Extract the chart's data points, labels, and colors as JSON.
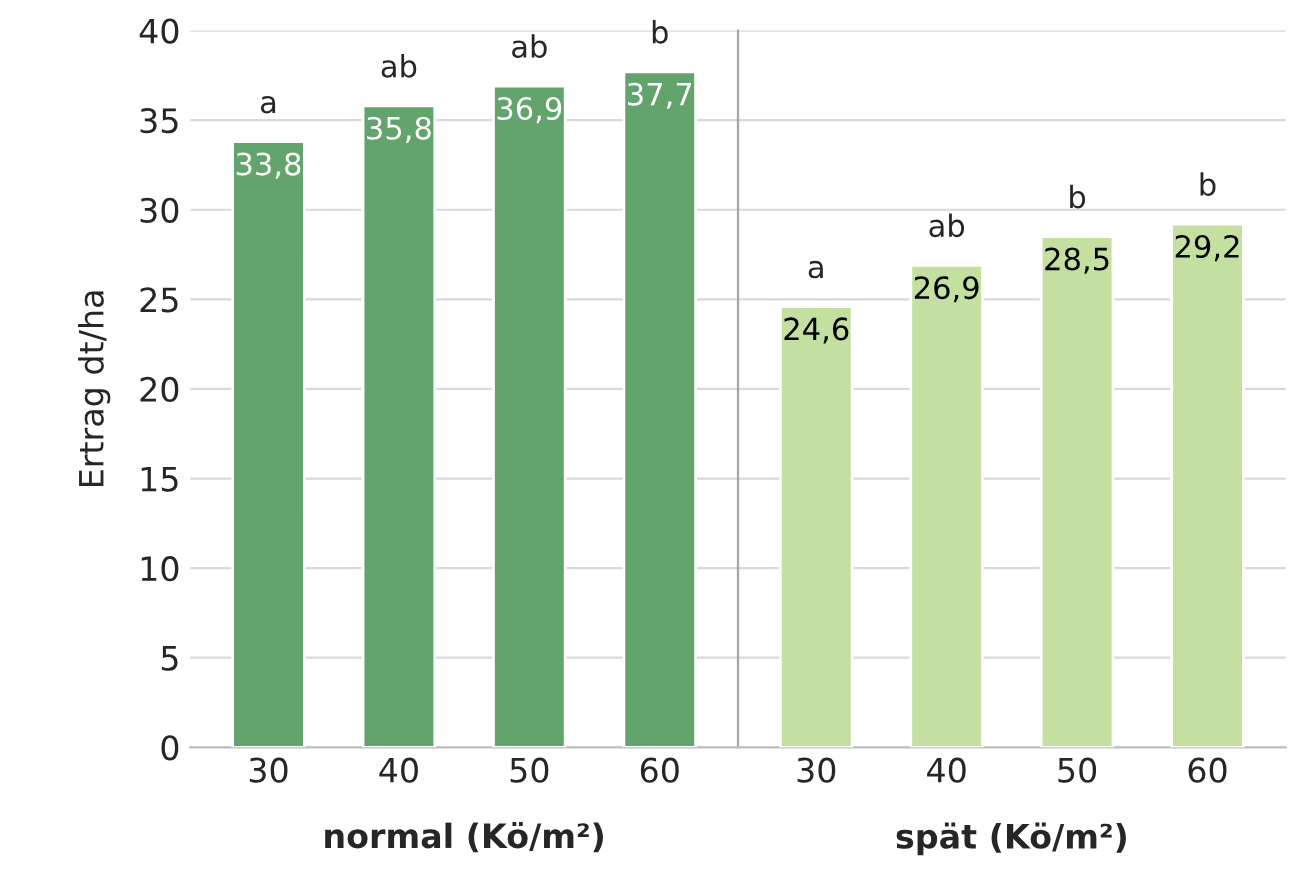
{
  "chart_data": [
    {
      "type": "bar",
      "ylabel": "Ertrag dt/ha",
      "xlabel": "normal (Kö/m²)",
      "categories": [
        "30",
        "40",
        "50",
        "60"
      ],
      "values": [
        33.8,
        35.8,
        36.9,
        37.7
      ],
      "colors": [
        "#63a46c",
        "#63a46c",
        "#63a46c",
        "#63a46c"
      ],
      "value_labels": [
        "33,8",
        "35,8",
        "36,9",
        "37,7"
      ],
      "annotations": [
        {
          "text": "a",
          "x": "30",
          "y": 33.8
        },
        {
          "text": "ab",
          "x": "40",
          "y": 35.8
        },
        {
          "text": "ab",
          "x": "50",
          "y": 36.9
        },
        {
          "text": "b",
          "x": "60",
          "y": 37.7
        }
      ],
      "ylim": [
        0,
        40
      ],
      "yticks": [
        0,
        5,
        10,
        15,
        20,
        25,
        30,
        35,
        40
      ],
      "grid": "y"
    },
    {
      "type": "bar",
      "xlabel": "spät (Kö/m²)",
      "categories": [
        "30",
        "40",
        "50",
        "60"
      ],
      "values": [
        24.6,
        26.9,
        28.5,
        29.2
      ],
      "colors": [
        "#c4e0a0",
        "#c4e0a0",
        "#c4e0a0",
        "#c4e0a0"
      ],
      "value_labels": [
        "24,6",
        "26,9",
        "28,5",
        "29,2"
      ],
      "annotations": [
        {
          "text": "a",
          "x": "30",
          "y": 24.6
        },
        {
          "text": "ab",
          "x": "40",
          "y": 26.9
        },
        {
          "text": "b",
          "x": "50",
          "y": 28.5
        },
        {
          "text": "b",
          "x": "60",
          "y": 29.2
        }
      ],
      "ylim": [
        0,
        40
      ],
      "yticks": [
        0,
        5,
        10,
        15,
        20,
        25,
        30,
        35,
        40
      ],
      "grid": "y",
      "tick_labels": "x"
    }
  ]
}
